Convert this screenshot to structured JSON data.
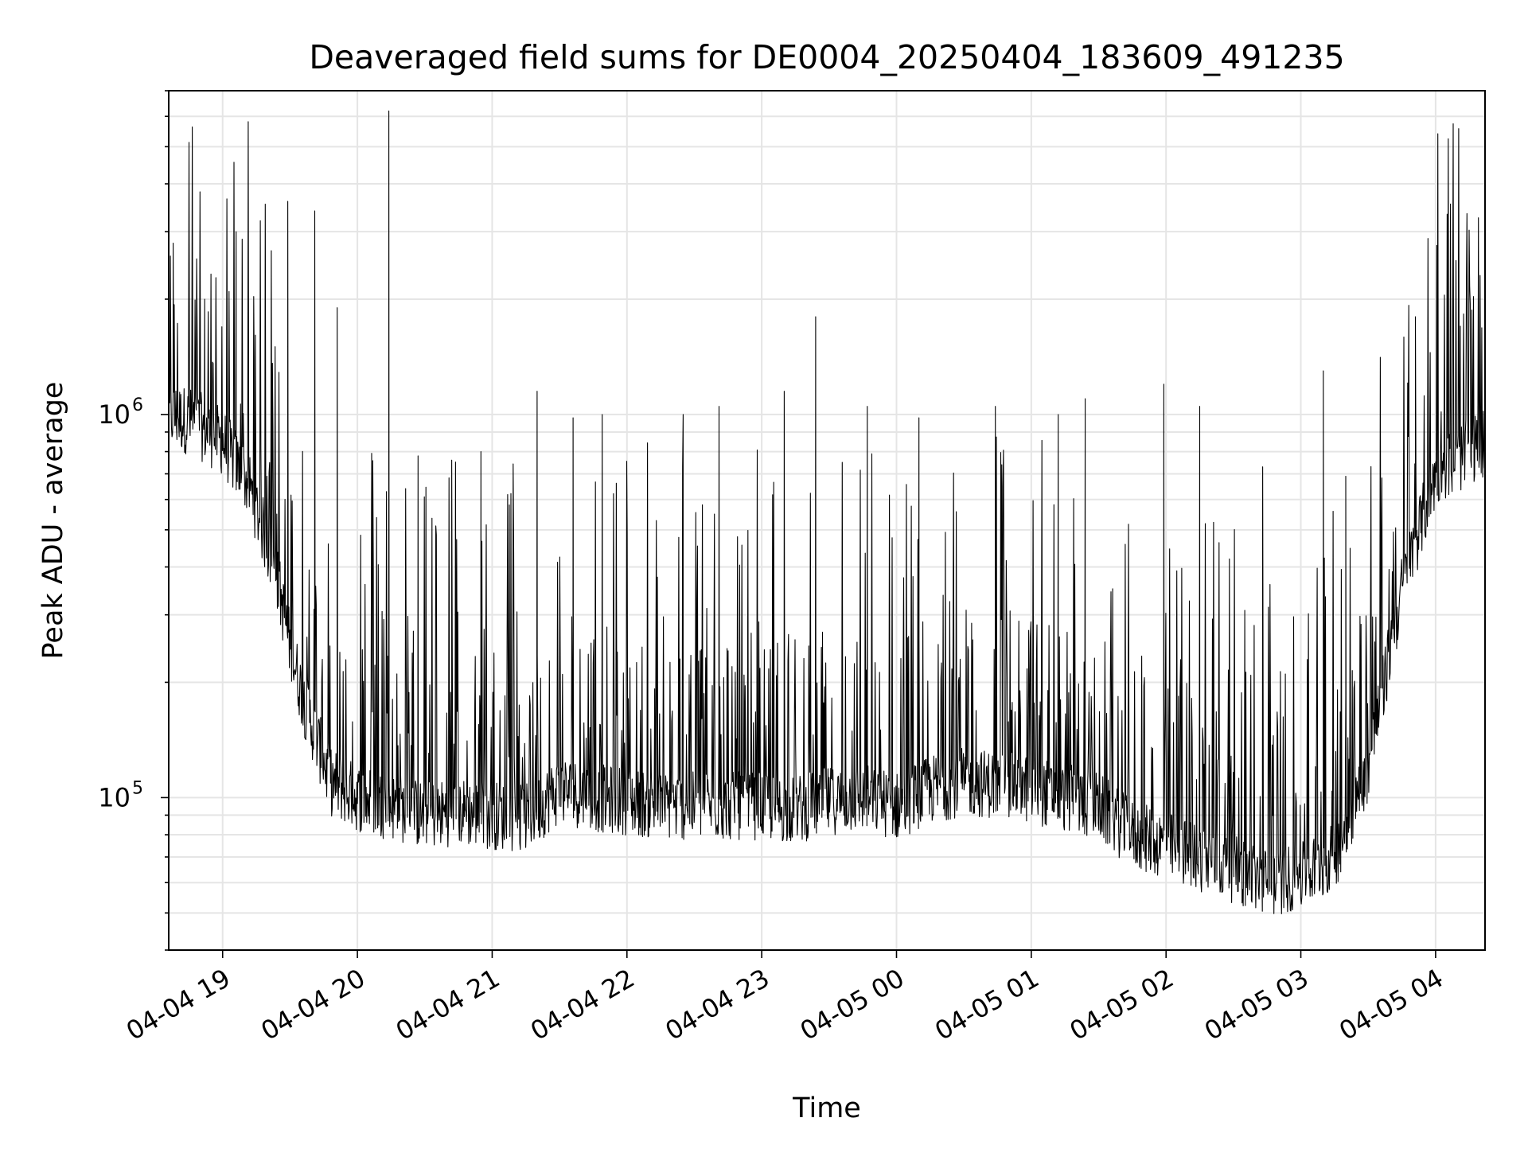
{
  "chart_data": {
    "type": "line",
    "title": "Deaveraged field sums for DE0004_20250404_183609_491235",
    "xlabel": "Time",
    "ylabel": "Peak ADU - average",
    "y_scale": "log",
    "xlim": [
      "2025-04-04 18:36",
      "2025-04-05 04:22"
    ],
    "ylim": [
      40000,
      7000000
    ],
    "grid": true,
    "grid_minor": true,
    "line_color": "#000000",
    "grid_color": "#e5e5e5",
    "x_ticks": [
      {
        "time": "2025-04-04 19:00",
        "label": "04-04 19"
      },
      {
        "time": "2025-04-04 20:00",
        "label": "04-04 20"
      },
      {
        "time": "2025-04-04 21:00",
        "label": "04-04 21"
      },
      {
        "time": "2025-04-04 22:00",
        "label": "04-04 22"
      },
      {
        "time": "2025-04-04 23:00",
        "label": "04-04 23"
      },
      {
        "time": "2025-04-05 00:00",
        "label": "04-05 00"
      },
      {
        "time": "2025-04-05 01:00",
        "label": "04-05 01"
      },
      {
        "time": "2025-04-05 02:00",
        "label": "04-05 02"
      },
      {
        "time": "2025-04-05 03:00",
        "label": "04-05 03"
      },
      {
        "time": "2025-04-05 04:00",
        "label": "04-05 04"
      }
    ],
    "y_ticks": [
      {
        "value": 100000,
        "base": "10",
        "exponent": "5"
      },
      {
        "value": 1000000,
        "base": "10",
        "exponent": "6"
      }
    ],
    "series": [
      {
        "x": [
          "2025-04-04 18:36",
          "2025-04-04 18:48",
          "2025-04-04 19:00",
          "2025-04-04 19:12",
          "2025-04-04 19:24",
          "2025-04-04 19:30",
          "2025-04-04 19:36",
          "2025-04-04 19:48",
          "2025-04-04 20:00",
          "2025-04-04 20:15",
          "2025-04-04 20:30",
          "2025-04-04 20:45",
          "2025-04-04 21:00",
          "2025-04-04 21:15",
          "2025-04-04 21:30",
          "2025-04-04 21:45",
          "2025-04-04 22:00",
          "2025-04-04 22:15",
          "2025-04-04 22:30",
          "2025-04-04 22:45",
          "2025-04-04 23:00",
          "2025-04-04 23:15",
          "2025-04-04 23:30",
          "2025-04-04 23:45",
          "2025-04-05 00:00",
          "2025-04-05 00:15",
          "2025-04-05 00:30",
          "2025-04-05 00:45",
          "2025-04-05 01:00",
          "2025-04-05 01:15",
          "2025-04-05 01:30",
          "2025-04-05 01:45",
          "2025-04-05 02:00",
          "2025-04-05 02:15",
          "2025-04-05 02:30",
          "2025-04-05 02:45",
          "2025-04-05 03:00",
          "2025-04-05 03:15",
          "2025-04-05 03:30",
          "2025-04-05 03:45",
          "2025-04-05 04:00",
          "2025-04-05 04:15",
          "2025-04-05 04:22"
        ],
        "values": [
          1000000,
          950000,
          850000,
          650000,
          380000,
          250000,
          180000,
          110000,
          100000,
          95000,
          90000,
          92000,
          90000,
          88000,
          105000,
          100000,
          98000,
          95000,
          95000,
          95000,
          95000,
          93000,
          98000,
          100000,
          95000,
          105000,
          110000,
          108000,
          105000,
          100000,
          95000,
          80000,
          75000,
          70000,
          65000,
          60000,
          62000,
          70000,
          120000,
          350000,
          700000,
          800000,
          850000
        ],
        "spikes": [
          {
            "time": "2025-04-04 18:38",
            "value": 2800000
          },
          {
            "time": "2025-04-04 18:52",
            "value": 2000000
          },
          {
            "time": "2025-04-04 19:06",
            "value": 3000000
          },
          {
            "time": "2025-04-04 19:14",
            "value": 1400000
          },
          {
            "time": "2025-04-04 19:29",
            "value": 3600000
          },
          {
            "time": "2025-04-04 19:41",
            "value": 3400000
          },
          {
            "time": "2025-04-04 19:51",
            "value": 1900000
          },
          {
            "time": "2025-04-04 20:14",
            "value": 6200000
          },
          {
            "time": "2025-04-04 20:27",
            "value": 780000
          },
          {
            "time": "2025-04-04 20:42",
            "value": 760000
          },
          {
            "time": "2025-04-04 20:55",
            "value": 800000
          },
          {
            "time": "2025-04-04 21:20",
            "value": 1150000
          },
          {
            "time": "2025-04-04 21:36",
            "value": 980000
          },
          {
            "time": "2025-04-04 21:49",
            "value": 1000000
          },
          {
            "time": "2025-04-04 22:25",
            "value": 1000000
          },
          {
            "time": "2025-04-04 22:41",
            "value": 1050000
          },
          {
            "time": "2025-04-04 23:10",
            "value": 1150000
          },
          {
            "time": "2025-04-04 23:24",
            "value": 1800000
          },
          {
            "time": "2025-04-04 23:47",
            "value": 1050000
          },
          {
            "time": "2025-04-05 00:10",
            "value": 980000
          },
          {
            "time": "2025-04-05 00:44",
            "value": 1050000
          },
          {
            "time": "2025-04-05 01:12",
            "value": 1000000
          },
          {
            "time": "2025-04-05 01:24",
            "value": 1100000
          },
          {
            "time": "2025-04-05 01:59",
            "value": 1200000
          },
          {
            "time": "2025-04-05 02:15",
            "value": 1050000
          },
          {
            "time": "2025-04-05 02:43",
            "value": 730000
          },
          {
            "time": "2025-04-05 03:10",
            "value": 1300000
          },
          {
            "time": "2025-04-05 03:20",
            "value": 690000
          },
          {
            "time": "2025-04-05 03:51",
            "value": 1800000
          },
          {
            "time": "2025-04-05 04:11",
            "value": 1700000
          },
          {
            "time": "2025-04-05 04:19",
            "value": 2100000
          }
        ]
      }
    ]
  }
}
